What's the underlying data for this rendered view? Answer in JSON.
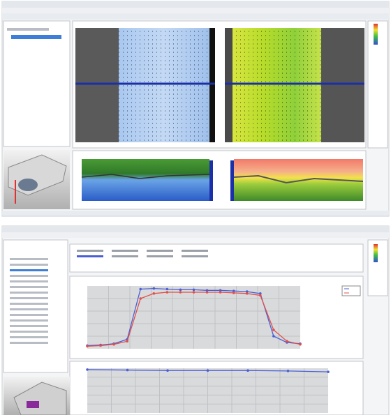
{
  "chart_data": [
    {
      "type": "line",
      "x": [
        0,
        1,
        2,
        3,
        4,
        5,
        6,
        7,
        8,
        9,
        10,
        11,
        12,
        13,
        14,
        15,
        16
      ],
      "xlim": [
        0,
        16
      ],
      "ylim": [
        0,
        100
      ],
      "series": [
        {
          "color": "#4a5fd6",
          "values": [
            5,
            6,
            8,
            15,
            95,
            96,
            95,
            94,
            94,
            93,
            93,
            92,
            91,
            88,
            20,
            10,
            8
          ]
        },
        {
          "color": "#e0504a",
          "values": [
            4,
            5,
            7,
            12,
            80,
            88,
            90,
            90,
            90,
            90,
            90,
            89,
            88,
            85,
            30,
            12,
            7
          ]
        }
      ]
    },
    {
      "type": "line",
      "x": [
        0,
        1,
        2,
        3,
        4,
        5,
        6
      ],
      "xlim": [
        0,
        6
      ],
      "ylim": [
        0,
        100
      ],
      "series": [
        {
          "color": "#4a5fd6",
          "values": [
            97,
            96,
            95,
            95,
            95,
            94,
            92
          ]
        }
      ]
    }
  ]
}
